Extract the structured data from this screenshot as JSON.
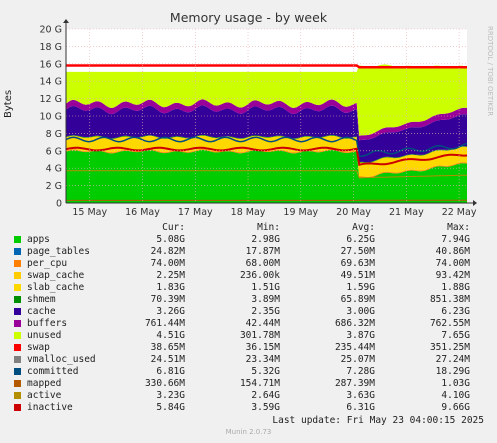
{
  "chart_data": {
    "type": "area",
    "title": "Memory usage - by week",
    "ylabel": "Bytes",
    "watermark": "RRDTOOL / TOBI OETIKER",
    "yticks": [
      "0",
      "2 G",
      "4 G",
      "6 G",
      "8 G",
      "10 G",
      "12 G",
      "14 G",
      "16 G",
      "18 G",
      "20 G"
    ],
    "ylim": [
      0,
      20
    ],
    "xticks": [
      "15 May",
      "16 May",
      "17 May",
      "18 May",
      "19 May",
      "20 May",
      "21 May",
      "22 May"
    ],
    "legend_headers": {
      "cur": "Cur:",
      "min": "Min:",
      "avg": "Avg:",
      "max": "Max:"
    },
    "series": [
      {
        "name": "apps",
        "color": "#00cc00",
        "cur": "5.08G",
        "min": "2.98G",
        "avg": "6.25G",
        "max": "7.94G"
      },
      {
        "name": "page_tables",
        "color": "#0066b3",
        "cur": "24.82M",
        "min": "17.87M",
        "avg": "27.50M",
        "max": "40.86M"
      },
      {
        "name": "per_cpu",
        "color": "#ff8000",
        "cur": "74.00M",
        "min": "68.00M",
        "avg": "69.63M",
        "max": "74.00M"
      },
      {
        "name": "swap_cache",
        "color": "#ffcc00",
        "cur": "2.25M",
        "min": "236.00k",
        "avg": "49.51M",
        "max": "93.42M"
      },
      {
        "name": "slab_cache",
        "color": "#ffd800",
        "cur": "1.83G",
        "min": "1.51G",
        "avg": "1.59G",
        "max": "1.88G"
      },
      {
        "name": "shmem",
        "color": "#008f00",
        "cur": "70.39M",
        "min": "3.89M",
        "avg": "65.89M",
        "max": "851.38M"
      },
      {
        "name": "cache",
        "color": "#330099",
        "cur": "3.26G",
        "min": "2.35G",
        "avg": "3.00G",
        "max": "6.23G"
      },
      {
        "name": "buffers",
        "color": "#990099",
        "cur": "761.44M",
        "min": "42.44M",
        "avg": "686.32M",
        "max": "762.55M"
      },
      {
        "name": "unused",
        "color": "#ccff00",
        "cur": "4.51G",
        "min": "301.78M",
        "avg": "3.87G",
        "max": "7.65G"
      },
      {
        "name": "swap",
        "color": "#ff0000",
        "cur": "38.65M",
        "min": "36.15M",
        "avg": "235.44M",
        "max": "351.25M"
      },
      {
        "name": "vmalloc_used",
        "color": "#808080",
        "cur": "24.51M",
        "min": "23.34M",
        "avg": "25.07M",
        "max": "27.24M"
      },
      {
        "name": "committed",
        "color": "#004d80",
        "cur": "6.81G",
        "min": "5.32G",
        "avg": "7.28G",
        "max": "18.29G"
      },
      {
        "name": "mapped",
        "color": "#b35a00",
        "cur": "330.66M",
        "min": "154.71M",
        "avg": "287.39M",
        "max": "1.03G"
      },
      {
        "name": "active",
        "color": "#b38f00",
        "cur": "3.23G",
        "min": "2.64G",
        "avg": "3.63G",
        "max": "4.10G"
      },
      {
        "name": "inactive",
        "color": "#cc0000",
        "cur": "5.84G",
        "min": "3.59G",
        "avg": "6.31G",
        "max": "9.66G"
      }
    ],
    "last_update": "Last update: Fri May 23 04:00:15 2025",
    "footer": "Munin 2.0.73"
  }
}
